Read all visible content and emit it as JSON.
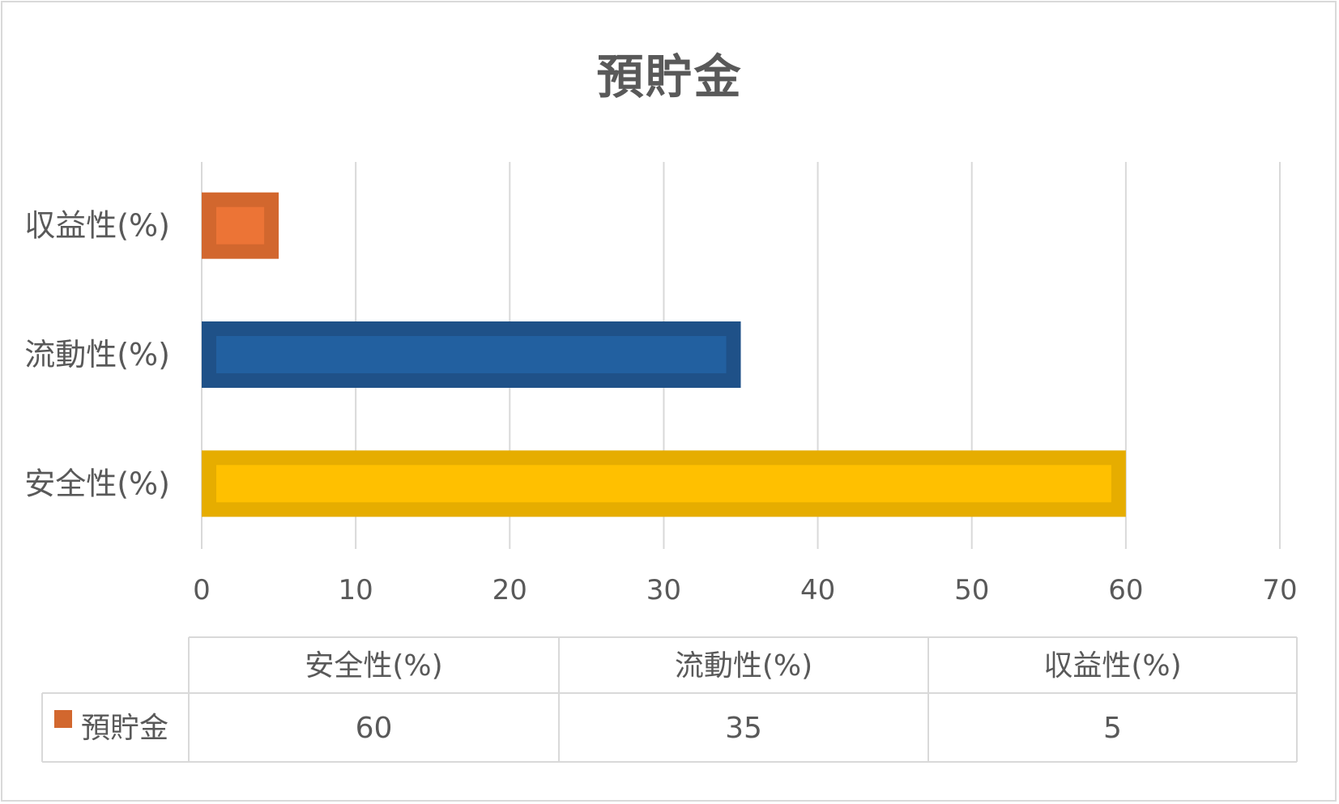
{
  "chart_data": {
    "type": "bar",
    "orientation": "horizontal",
    "title": "預貯金",
    "categories": [
      "安全性(%)",
      "流動性(%)",
      "収益性(%)"
    ],
    "series": [
      {
        "name": "預貯金",
        "values": [
          60,
          35,
          5
        ],
        "legend_color": "#d2672e"
      }
    ],
    "bar_colors": {
      "安全性(%)": {
        "fill": "#ffc000",
        "border": "#e6ad00"
      },
      "流動性(%)": {
        "fill": "#2260a0",
        "border": "#1f5188"
      },
      "収益性(%)": {
        "fill": "#ec7436",
        "border": "#d2672e"
      }
    },
    "xlim": [
      0,
      70
    ],
    "x_ticks": [
      "0",
      "10",
      "20",
      "30",
      "40",
      "50",
      "60",
      "70"
    ],
    "grid": true,
    "data_table": {
      "headers": [
        "安全性(%)",
        "流動性(%)",
        "収益性(%)"
      ],
      "row_label": "預貯金",
      "row_values": [
        "60",
        "35",
        "5"
      ]
    }
  }
}
